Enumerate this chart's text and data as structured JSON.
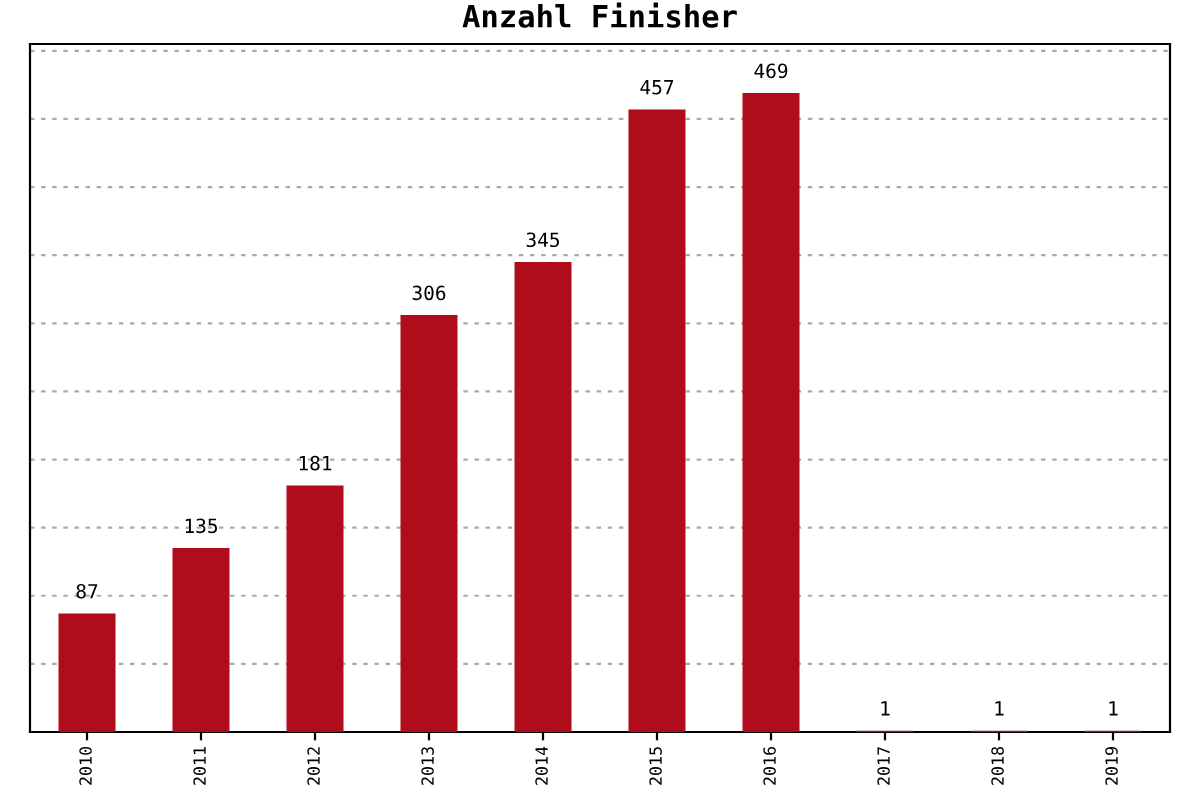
{
  "chart_data": {
    "type": "bar",
    "title": "Anzahl Finisher",
    "categories": [
      "2010",
      "2011",
      "2012",
      "2013",
      "2014",
      "2015",
      "2016",
      "2017",
      "2018",
      "2019"
    ],
    "values": [
      87,
      135,
      181,
      306,
      345,
      457,
      469,
      1,
      1,
      1
    ],
    "color": "#b00c1c",
    "data_labels": true,
    "ylim": [
      0,
      505
    ],
    "yticks": [
      {
        "value": 50,
        "label": null
      },
      {
        "value": 100,
        "label": null
      },
      {
        "value": 150,
        "label": null
      },
      {
        "value": 200,
        "label": null
      },
      {
        "value": 250,
        "label": null
      },
      {
        "value": 300,
        "label": null
      },
      {
        "value": 350,
        "label": null
      },
      {
        "value": 400,
        "label": null
      },
      {
        "value": 450,
        "label": null
      },
      {
        "value": 500,
        "label": null
      }
    ],
    "tick_labels": "x",
    "grid": "y"
  }
}
